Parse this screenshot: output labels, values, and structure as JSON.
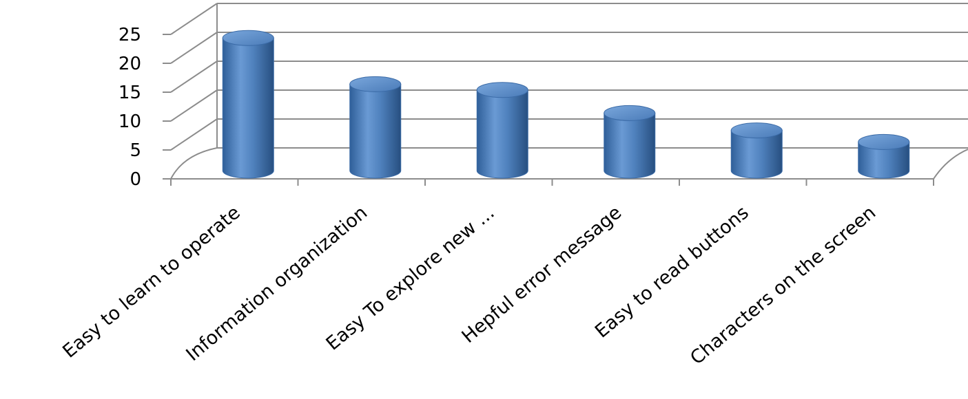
{
  "chart_data": {
    "type": "bar",
    "style": "3d-cylinder",
    "categories": [
      "Easy to learn to operate",
      "Information organization",
      "Easy  To explore new ...",
      "Hepful error message",
      "Easy to read  buttons",
      "Characters on the screen"
    ],
    "values": [
      22,
      14,
      13,
      9,
      6,
      4
    ],
    "title": "",
    "xlabel": "",
    "ylabel": "",
    "ylim": [
      0,
      25
    ],
    "yticks": [
      0,
      5,
      10,
      15,
      20,
      25
    ],
    "grid": true,
    "legend": "none",
    "bar_color": "#4f81bd"
  }
}
